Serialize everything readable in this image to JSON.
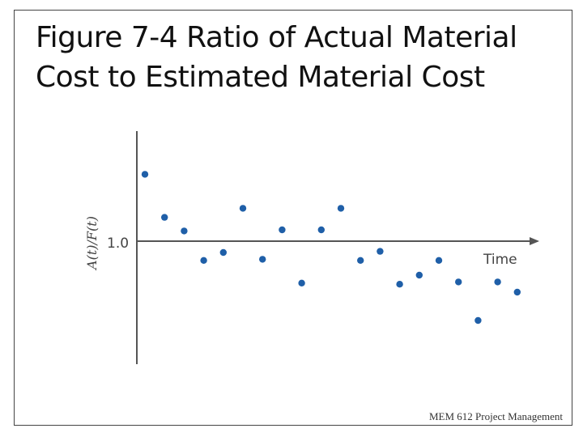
{
  "slide": {
    "title_line1": "Figure 7-4 Ratio of Actual Material",
    "title_line2": "Cost to Estimated Material Cost",
    "footer": "MEM 612 Project Management"
  },
  "chart_data": {
    "type": "scatter",
    "title": "",
    "xlabel": "Time",
    "ylabel": "A(t)/F(t)",
    "y_reference": 1.0,
    "y_reference_label": "1.0",
    "ylim": [
      0.0,
      1.9
    ],
    "grid": false,
    "point_color": "#1f5fa8",
    "points": [
      {
        "t": 1,
        "ratio": 1.59
      },
      {
        "t": 2,
        "ratio": 1.21
      },
      {
        "t": 3,
        "ratio": 1.09
      },
      {
        "t": 4,
        "ratio": 0.83
      },
      {
        "t": 5,
        "ratio": 0.9
      },
      {
        "t": 6,
        "ratio": 1.29
      },
      {
        "t": 7,
        "ratio": 0.84
      },
      {
        "t": 8,
        "ratio": 1.1
      },
      {
        "t": 9,
        "ratio": 0.63
      },
      {
        "t": 10,
        "ratio": 1.1
      },
      {
        "t": 11,
        "ratio": 1.29
      },
      {
        "t": 12,
        "ratio": 0.83
      },
      {
        "t": 13,
        "ratio": 0.91
      },
      {
        "t": 14,
        "ratio": 0.62
      },
      {
        "t": 15,
        "ratio": 0.7
      },
      {
        "t": 16,
        "ratio": 0.83
      },
      {
        "t": 17,
        "ratio": 0.64
      },
      {
        "t": 18,
        "ratio": 0.3
      },
      {
        "t": 19,
        "ratio": 0.64
      },
      {
        "t": 20,
        "ratio": 0.55
      }
    ]
  }
}
